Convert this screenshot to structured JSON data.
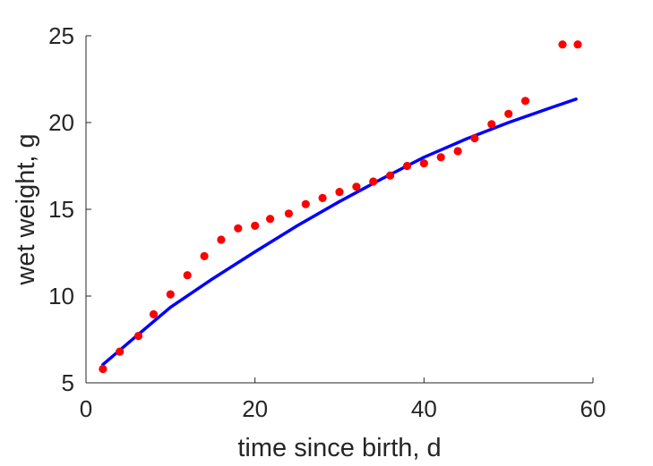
{
  "chart_data": {
    "type": "scatter",
    "xlabel": "time since birth, d",
    "ylabel": "wet weight, g",
    "xlim": [
      0,
      60
    ],
    "ylim": [
      5,
      25
    ],
    "xticks": [
      0,
      20,
      40,
      60
    ],
    "yticks": [
      5,
      10,
      15,
      20,
      25
    ],
    "grid": false,
    "series": [
      {
        "type": "scatter",
        "color": "#ff0000",
        "x": [
          2,
          4,
          6.2,
          8,
          10,
          12,
          14,
          16,
          18,
          20,
          21.8,
          24,
          26,
          28,
          30,
          32,
          34,
          36,
          38,
          40,
          42,
          44,
          46,
          48,
          50,
          52,
          56.4,
          58.2
        ],
        "y": [
          5.8,
          6.8,
          7.7,
          8.95,
          10.1,
          11.2,
          12.3,
          13.25,
          13.9,
          14.05,
          14.45,
          14.75,
          15.3,
          15.65,
          16.0,
          16.3,
          16.6,
          16.95,
          17.5,
          17.65,
          18.0,
          18.35,
          19.1,
          19.9,
          20.5,
          21.25,
          24.5,
          24.5
        ]
      },
      {
        "type": "line",
        "color": "#0000ff",
        "x": [
          2,
          5,
          10,
          15,
          20,
          25,
          30,
          35,
          40,
          45,
          50,
          55,
          58
        ],
        "y": [
          6.05,
          7.3,
          9.35,
          11.0,
          12.55,
          14.05,
          15.45,
          16.75,
          18.0,
          19.05,
          20.0,
          20.85,
          21.35
        ]
      }
    ]
  }
}
